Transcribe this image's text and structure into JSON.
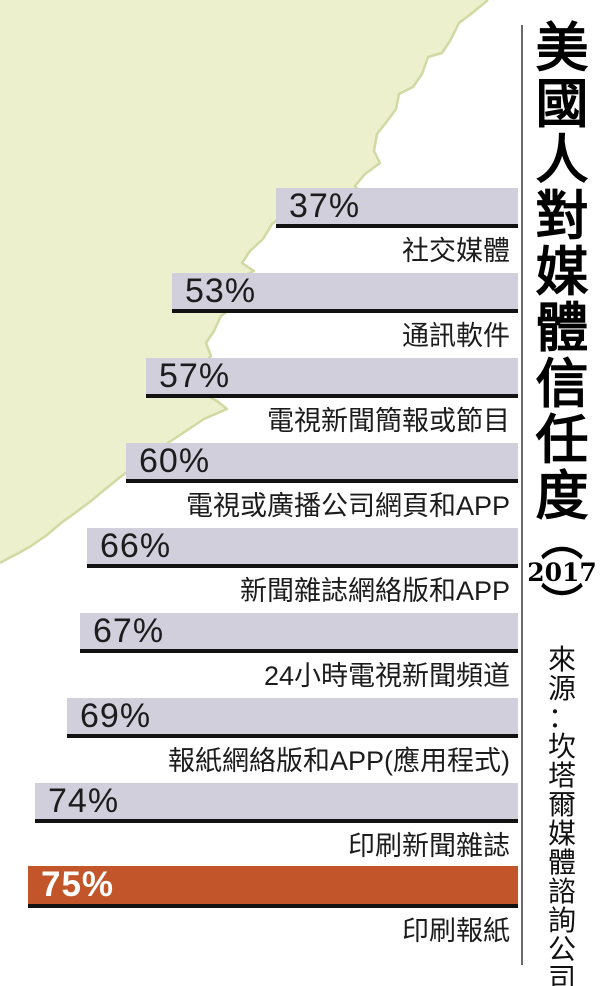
{
  "title": {
    "full": "美國人對媒體信任度（2017）",
    "main": "美國人對媒體信任度",
    "paren_open": "︵",
    "year": "2017",
    "paren_close": "︶"
  },
  "source": {
    "full": "來源：坎塔爾媒體諮詢公司"
  },
  "colors": {
    "bar": "#d2cfdd",
    "bar_highlight": "#c2552a",
    "underline": "#121212",
    "paper": "#edf0cc",
    "paper_edge": "#ccd69b",
    "divider": "#6b6b6b",
    "text": "#1c1c1c",
    "value_text": "#1c1c1c",
    "highlight_value_text": "#ffffff"
  },
  "chart_data": {
    "type": "bar",
    "orientation": "horizontal-right-aligned",
    "title": "美國人對媒體信任度（2017）",
    "source": "來源：坎塔爾媒體諮詢公司",
    "unit": "%",
    "xlim": [
      0,
      75
    ],
    "grid": false,
    "legend": "none",
    "rows": [
      {
        "label": "社交媒體",
        "value": 37,
        "display": "37%",
        "highlight": false
      },
      {
        "label": "通訊軟件",
        "value": 53,
        "display": "53%",
        "highlight": false
      },
      {
        "label": "電視新聞簡報或節目",
        "value": 57,
        "display": "57%",
        "highlight": false
      },
      {
        "label": "電視或廣播公司網頁和APP",
        "value": 60,
        "display": "60%",
        "highlight": false
      },
      {
        "label": "新聞雜誌網絡版和APP",
        "value": 66,
        "display": "66%",
        "highlight": false
      },
      {
        "label": "24小時電視新聞頻道",
        "value": 67,
        "display": "67%",
        "highlight": false
      },
      {
        "label": "報紙網絡版和APP(應用程式)",
        "value": 69,
        "display": "69%",
        "highlight": false
      },
      {
        "label": "印刷新聞雜誌",
        "value": 74,
        "display": "74%",
        "highlight": false
      },
      {
        "label": "印刷報紙",
        "value": 75,
        "display": "75%",
        "highlight": true
      }
    ]
  }
}
